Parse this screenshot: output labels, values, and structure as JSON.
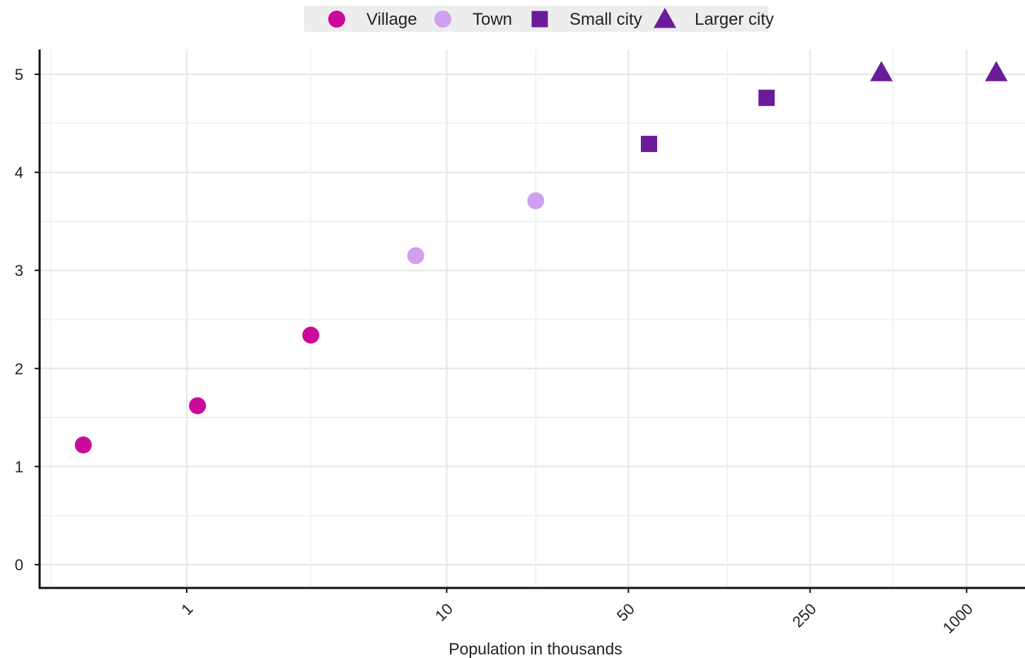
{
  "chart_data": {
    "type": "scatter",
    "title": "",
    "xlabel": "Population in thousands",
    "ylabel": "",
    "x_scale": "log",
    "xlim": [
      0.2,
      1200
    ],
    "ylim": [
      -0.25,
      5.25
    ],
    "x_ticks": [
      1,
      10,
      50,
      250,
      1000
    ],
    "x_tick_labels": [
      "1",
      "10",
      "50",
      "250",
      "1000"
    ],
    "y_ticks": [
      0,
      1,
      2,
      3,
      4,
      5
    ],
    "y_tick_labels": [
      "0",
      "1",
      "2",
      "3",
      "4",
      "5"
    ],
    "grid": true,
    "legend_position": "top-center",
    "series": [
      {
        "name": "Village",
        "marker": "circle",
        "color": "#cc0a99",
        "points": [
          {
            "x": 0.4,
            "y": 1.22
          },
          {
            "x": 1.1,
            "y": 1.62
          },
          {
            "x": 3.0,
            "y": 2.34
          }
        ]
      },
      {
        "name": "Town",
        "marker": "circle",
        "color": "#cf9ff0",
        "points": [
          {
            "x": 7.6,
            "y": 3.15
          },
          {
            "x": 22,
            "y": 3.71
          }
        ]
      },
      {
        "name": "Small city",
        "marker": "square",
        "color": "#6a1b9a",
        "points": [
          {
            "x": 60,
            "y": 4.29
          },
          {
            "x": 170,
            "y": 4.76
          }
        ]
      },
      {
        "name": "Larger city",
        "marker": "triangle",
        "color": "#6a1b9a",
        "points": [
          {
            "x": 470,
            "y": 5.02
          },
          {
            "x": 1300,
            "y": 5.02
          }
        ]
      }
    ]
  }
}
